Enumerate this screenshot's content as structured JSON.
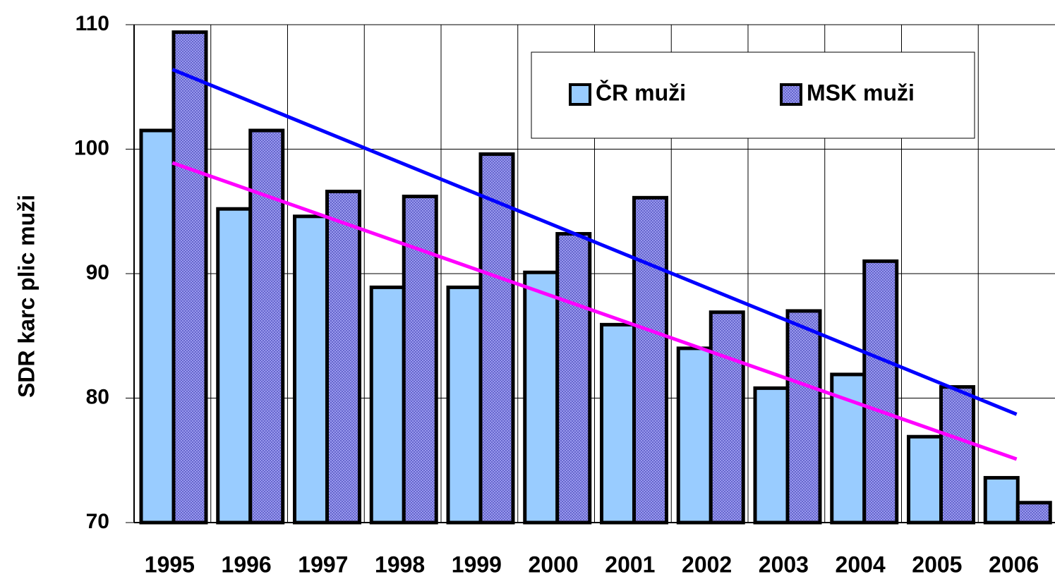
{
  "chart_data": {
    "type": "bar",
    "y_label": "SDR karc plic muži",
    "categories": [
      "1995",
      "1996",
      "1997",
      "1998",
      "1999",
      "2000",
      "2001",
      "2002",
      "2003",
      "2004",
      "2005",
      "2006"
    ],
    "series": [
      {
        "name": "ČR muži",
        "color": "#99ccff",
        "values": [
          101.5,
          95.2,
          94.6,
          88.9,
          88.9,
          90.1,
          85.9,
          84.0,
          80.8,
          81.9,
          76.9,
          73.6
        ]
      },
      {
        "name": "MSK muži",
        "color": "#6666cc",
        "values": [
          109.4,
          101.5,
          96.6,
          96.2,
          99.6,
          93.2,
          96.1,
          86.9,
          87.0,
          91.0,
          80.9,
          71.6
        ]
      }
    ],
    "trendlines": [
      {
        "color": "#0000ff",
        "values": [
          106.4,
          78.7
        ]
      },
      {
        "color": "#ff00ff",
        "values": [
          98.9,
          75.1
        ]
      }
    ],
    "ylim": [
      70,
      110
    ],
    "yticks": [
      70,
      80,
      90,
      100,
      110
    ],
    "grid": true,
    "legend": "top-right"
  }
}
